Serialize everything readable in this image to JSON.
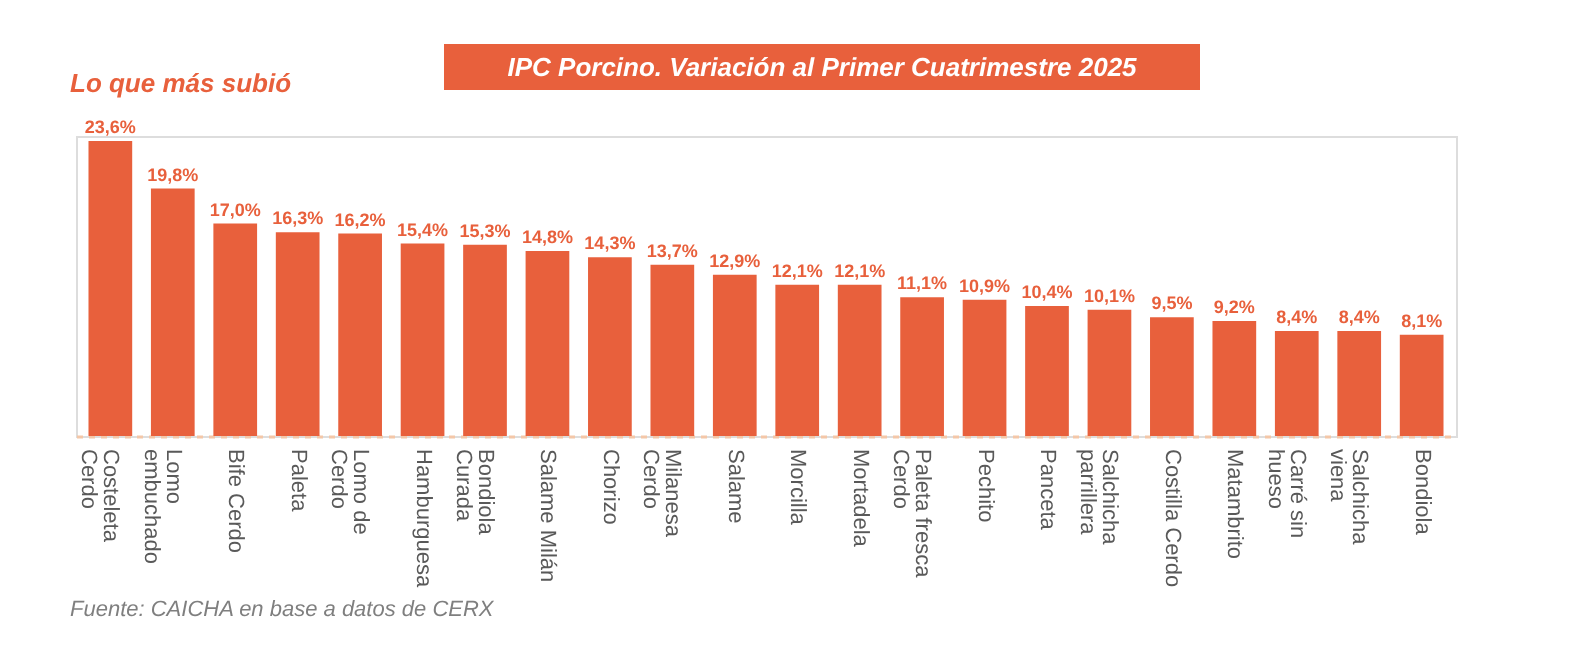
{
  "chart_data": {
    "type": "bar",
    "title": "IPC Porcino. Variación al Primer Cuatrimestre 2025",
    "subtitle": "Lo que más subió",
    "categories": [
      "Costeleta\nCerdo",
      "Lomo\nembuchado",
      "Bife Cerdo",
      "Paleta",
      "Lomo de\nCerdo",
      "Hamburguesa",
      "Bondiola\nCurada",
      "Salame Milán",
      "Chorizo",
      "Milanesa\nCerdo",
      "Salame",
      "Morcilla",
      "Mortadela",
      "Paleta fresca\nCerdo",
      "Pechito",
      "Panceta",
      "Salchicha\nparrillera",
      "Costilla Cerdo",
      "Matambrito",
      "Carré sin\nhueso",
      "Salchicha\nviena",
      "Bondiola"
    ],
    "values": [
      23.6,
      19.8,
      17.0,
      16.3,
      16.2,
      15.4,
      15.3,
      14.8,
      14.3,
      13.7,
      12.9,
      12.1,
      12.1,
      11.1,
      10.9,
      10.4,
      10.1,
      9.5,
      9.2,
      8.4,
      8.4,
      8.1
    ],
    "value_labels": [
      "23,6%",
      "19,8%",
      "17,0%",
      "16,3%",
      "16,2%",
      "15,4%",
      "15,3%",
      "14,8%",
      "14,3%",
      "13,7%",
      "12,9%",
      "12,1%",
      "12,1%",
      "11,1%",
      "10,9%",
      "10,4%",
      "10,1%",
      "9,5%",
      "9,2%",
      "8,4%",
      "8,4%",
      "8,1%"
    ],
    "color": "#e8603c",
    "annotations": [
      "Fuente: CAICHA en base a datos de CERX"
    ]
  }
}
